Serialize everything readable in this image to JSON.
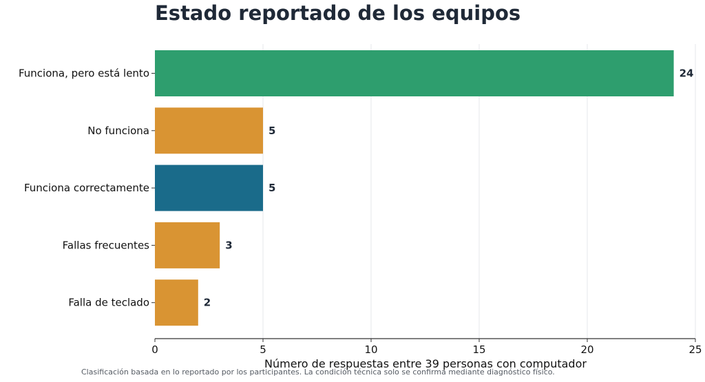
{
  "chart_data": {
    "type": "bar",
    "orientation": "horizontal",
    "title": "Estado reportado de los equipos",
    "xlabel": "Número de respuestas entre 39 personas con computador",
    "ylabel": "",
    "xlim": [
      0,
      25
    ],
    "xticks": [
      0,
      5,
      10,
      15,
      20,
      25
    ],
    "grid": true,
    "categories": [
      "Funciona, pero está lento",
      "No funciona",
      "Funciona correctamente",
      "Fallas frecuentes",
      "Falla de teclado"
    ],
    "values": [
      24,
      5,
      5,
      3,
      2
    ],
    "colors": [
      "#2e9e6e",
      "#d99433",
      "#1a6b8a",
      "#d99433",
      "#d99433"
    ],
    "footnote": "Clasificación basada en lo reportado por los participantes. La condición técnica solo se confirma mediante diagnóstico físico."
  }
}
